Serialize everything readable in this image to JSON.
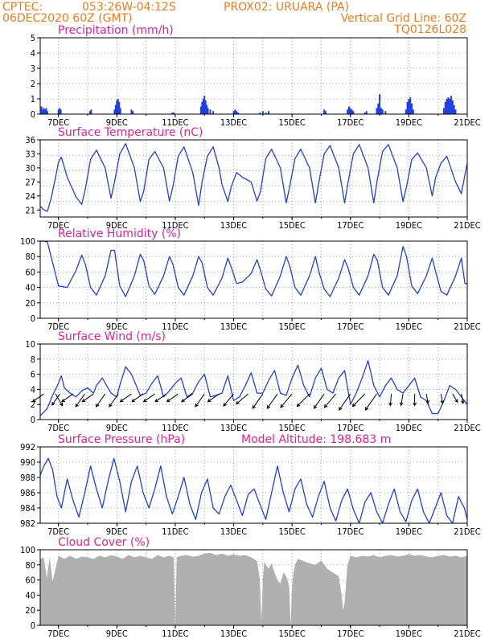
{
  "header": {
    "line1_left": "CPTEC:",
    "coords": "053:26W-04:12S",
    "station": "PROX02: URUARA (PA)",
    "date": "06DEC2020 60Z (GMT)",
    "grid_note": "Vertical Grid Line: 60Z",
    "run_id": "TQ0126L028"
  },
  "colors": {
    "header": "#f07a1e",
    "title": "#e0209a",
    "series": "#1f3fe0",
    "cloud": "#b0b0b0"
  },
  "chart_data": [
    {
      "type": "bar",
      "name": "precip",
      "title": "Precipitation (mm/h)",
      "x_tick_labels": [
        "7DEC",
        "9DEC",
        "11DEC",
        "13DEC",
        "15DEC",
        "17DEC",
        "19DEC",
        "21DEC"
      ],
      "y_ticks": [
        "0",
        "1",
        "2",
        "3",
        "4",
        "5"
      ],
      "ylim": [
        0,
        5
      ],
      "xlim": [
        6.375,
        21.0
      ],
      "x": [
        6.42,
        6.46,
        6.5,
        6.54,
        6.58,
        6.62,
        7.0,
        7.04,
        7.08,
        8.08,
        8.12,
        8.92,
        8.96,
        9.0,
        9.04,
        9.08,
        9.12,
        9.5,
        9.55,
        10.9,
        10.95,
        11.88,
        11.92,
        11.96,
        12.0,
        12.04,
        12.08,
        12.12,
        12.2,
        12.3,
        13.0,
        13.05,
        13.1,
        13.15,
        13.9,
        14.0,
        14.1,
        14.2,
        16.1,
        16.15,
        16.9,
        16.95,
        17.0,
        17.05,
        17.1,
        17.5,
        17.55,
        17.9,
        17.95,
        18.0,
        18.05,
        18.1,
        18.2,
        18.9,
        18.95,
        19.0,
        19.05,
        19.1,
        19.15,
        20.2,
        20.25,
        20.3,
        20.35,
        20.4,
        20.45,
        20.5,
        20.55,
        20.6
      ],
      "values": [
        0.5,
        0.3,
        0.4,
        0.3,
        0.4,
        0.2,
        0.3,
        0.4,
        0.3,
        0.2,
        0.3,
        0.3,
        0.6,
        0.9,
        1.0,
        0.8,
        0.4,
        0.3,
        0.2,
        0.1,
        0.1,
        0.5,
        0.8,
        1.0,
        1.2,
        0.9,
        0.6,
        0.4,
        0.3,
        0.2,
        0.2,
        0.3,
        0.2,
        0.1,
        0.1,
        0.2,
        0.1,
        0.2,
        0.3,
        0.2,
        0.3,
        0.5,
        0.4,
        0.3,
        0.2,
        0.1,
        0.2,
        0.4,
        0.7,
        1.3,
        0.4,
        0.3,
        0.2,
        0.3,
        0.8,
        1.0,
        1.1,
        0.7,
        0.3,
        0.4,
        0.8,
        1.0,
        1.1,
        1.0,
        1.2,
        0.9,
        0.6,
        0.3
      ]
    },
    {
      "type": "line",
      "name": "temp",
      "title": "Surface Temperature (nC)",
      "x_tick_labels": [
        "7DEC",
        "9DEC",
        "11DEC",
        "13DEC",
        "15DEC",
        "17DEC",
        "19DEC",
        "21DEC"
      ],
      "y_ticks": [
        "21",
        "24",
        "27",
        "30",
        "33",
        "36"
      ],
      "ylim": [
        19.5,
        36
      ],
      "xlim": [
        6.375,
        21.0
      ],
      "x": [
        6.375,
        6.45,
        6.55,
        6.62,
        6.75,
        6.9,
        7.0,
        7.1,
        7.3,
        7.6,
        7.8,
        7.92,
        8.1,
        8.3,
        8.6,
        8.8,
        8.92,
        9.1,
        9.3,
        9.6,
        9.8,
        9.92,
        10.1,
        10.3,
        10.6,
        10.8,
        10.92,
        11.1,
        11.3,
        11.6,
        11.8,
        11.92,
        12.1,
        12.3,
        12.5,
        12.6,
        12.8,
        12.92,
        13.1,
        13.3,
        13.6,
        13.8,
        13.92,
        14.1,
        14.3,
        14.6,
        14.8,
        14.92,
        15.1,
        15.3,
        15.6,
        15.8,
        15.92,
        16.1,
        16.3,
        16.6,
        16.8,
        16.92,
        17.1,
        17.3,
        17.6,
        17.8,
        17.92,
        18.1,
        18.3,
        18.6,
        18.8,
        18.92,
        19.1,
        19.3,
        19.6,
        19.8,
        19.92,
        20.1,
        20.3,
        20.6,
        20.8,
        20.92,
        21.0
      ],
      "values": [
        21.8,
        21.3,
        20.9,
        20.7,
        23.5,
        28.0,
        31.2,
        32.3,
        28.0,
        23.8,
        22.2,
        25.5,
        31.8,
        33.8,
        30.0,
        23.5,
        27.0,
        33.0,
        35.2,
        30.0,
        22.8,
        25.0,
        31.8,
        33.5,
        30.0,
        22.9,
        26.0,
        32.5,
        34.5,
        29.0,
        22.0,
        27.0,
        32.5,
        34.5,
        30.0,
        26.5,
        22.8,
        26.0,
        29.0,
        28.0,
        27.0,
        22.9,
        25.0,
        32.0,
        34.0,
        30.0,
        22.5,
        26.0,
        32.0,
        34.0,
        30.0,
        22.5,
        27.0,
        33.0,
        34.8,
        30.0,
        22.5,
        27.0,
        33.0,
        35.0,
        30.0,
        22.5,
        27.5,
        33.5,
        35.0,
        30.0,
        22.8,
        26.0,
        31.8,
        33.2,
        30.0,
        24.0,
        28.0,
        31.0,
        32.5,
        27.0,
        24.5,
        28.5,
        31.0
      ]
    },
    {
      "type": "line",
      "name": "rh",
      "title": "Relative Humidity (%)",
      "x_tick_labels": [
        "7DEC",
        "9DEC",
        "11DEC",
        "13DEC",
        "15DEC",
        "17DEC",
        "19DEC",
        "21DEC"
      ],
      "y_ticks": [
        "0",
        "20",
        "40",
        "60",
        "80",
        "100"
      ],
      "ylim": [
        0,
        100
      ],
      "xlim": [
        6.375,
        21.0
      ],
      "x": [
        6.375,
        6.5,
        6.62,
        6.85,
        7.0,
        7.3,
        7.6,
        7.8,
        7.92,
        8.1,
        8.3,
        8.6,
        8.8,
        8.92,
        9.1,
        9.3,
        9.6,
        9.8,
        9.92,
        10.1,
        10.3,
        10.6,
        10.8,
        10.92,
        11.1,
        11.3,
        11.6,
        11.8,
        11.92,
        12.1,
        12.3,
        12.6,
        12.8,
        12.92,
        13.1,
        13.3,
        13.6,
        13.8,
        13.92,
        14.1,
        14.3,
        14.6,
        14.8,
        14.92,
        15.1,
        15.3,
        15.6,
        15.8,
        15.92,
        16.1,
        16.3,
        16.6,
        16.8,
        16.92,
        17.1,
        17.3,
        17.6,
        17.8,
        17.92,
        18.1,
        18.3,
        18.6,
        18.8,
        18.92,
        19.1,
        19.3,
        19.6,
        19.8,
        19.92,
        20.1,
        20.3,
        20.6,
        20.8,
        20.92,
        21.0
      ],
      "values": [
        100,
        100,
        99,
        65,
        42,
        40,
        62,
        82,
        70,
        40,
        30,
        55,
        88,
        88,
        42,
        28,
        55,
        83,
        75,
        42,
        31,
        55,
        80,
        70,
        40,
        30,
        55,
        80,
        72,
        40,
        30,
        52,
        78,
        66,
        45,
        47,
        58,
        76,
        62,
        38,
        29,
        55,
        80,
        68,
        40,
        30,
        55,
        80,
        60,
        38,
        28,
        52,
        76,
        65,
        40,
        30,
        55,
        83,
        75,
        40,
        30,
        55,
        93,
        80,
        42,
        32,
        55,
        78,
        60,
        35,
        30,
        55,
        78,
        45,
        45
      ]
    },
    {
      "type": "line",
      "name": "wind",
      "title": "Surface Wind (m/s)",
      "x_tick_labels": [
        "7DEC",
        "9DEC",
        "11DEC",
        "13DEC",
        "15DEC",
        "17DEC",
        "19DEC",
        "21DEC"
      ],
      "y_ticks": [
        "0",
        "2",
        "4",
        "6",
        "8",
        "10"
      ],
      "ylim": [
        0,
        10
      ],
      "xlim": [
        6.375,
        21.0
      ],
      "x": [
        6.375,
        6.5,
        6.62,
        6.8,
        7.0,
        7.1,
        7.2,
        7.4,
        7.6,
        7.8,
        8.0,
        8.2,
        8.3,
        8.5,
        8.8,
        9.0,
        9.1,
        9.3,
        9.5,
        9.8,
        10.0,
        10.2,
        10.4,
        10.6,
        10.8,
        11.0,
        11.2,
        11.4,
        11.6,
        11.8,
        12.0,
        12.2,
        12.4,
        12.6,
        12.8,
        13.0,
        13.2,
        13.4,
        13.6,
        13.8,
        14.0,
        14.2,
        14.4,
        14.6,
        14.8,
        15.0,
        15.2,
        15.4,
        15.6,
        15.8,
        16.0,
        16.2,
        16.4,
        16.6,
        16.8,
        17.0,
        17.2,
        17.4,
        17.6,
        17.8,
        18.0,
        18.2,
        18.4,
        18.6,
        18.8,
        19.0,
        19.2,
        19.4,
        19.6,
        19.8,
        20.0,
        20.2,
        20.4,
        20.6,
        20.8,
        21.0
      ],
      "values": [
        0.5,
        1.0,
        1.5,
        3.2,
        4.8,
        5.8,
        4.2,
        3.5,
        3.0,
        3.8,
        4.2,
        3.5,
        4.5,
        5.5,
        3.5,
        3.0,
        4.5,
        7.0,
        6.0,
        3.2,
        3.5,
        4.8,
        5.8,
        3.0,
        3.8,
        4.8,
        5.5,
        3.0,
        3.5,
        5.0,
        6.0,
        3.0,
        3.2,
        3.5,
        5.8,
        2.5,
        3.0,
        4.5,
        6.2,
        3.5,
        3.5,
        5.2,
        6.5,
        3.5,
        3.2,
        5.5,
        7.2,
        4.5,
        3.0,
        5.5,
        6.8,
        4.0,
        3.5,
        5.5,
        6.5,
        2.0,
        3.5,
        5.5,
        7.8,
        4.5,
        3.0,
        4.5,
        5.5,
        4.0,
        3.5,
        4.5,
        5.5,
        3.0,
        2.5,
        0.8,
        0.8,
        2.5,
        4.5,
        4.0,
        3.0,
        2.0
      ],
      "arrows": [
        {
          "x": 6.5,
          "dir": 215,
          "speed": 2
        },
        {
          "x": 6.9,
          "dir": 300,
          "speed": 2
        },
        {
          "x": 7.05,
          "dir": 235,
          "speed": 2
        },
        {
          "x": 7.5,
          "dir": 215,
          "speed": 2
        },
        {
          "x": 7.9,
          "dir": 235,
          "speed": 2.5
        },
        {
          "x": 8.2,
          "dir": 215,
          "speed": 2
        },
        {
          "x": 8.6,
          "dir": 235,
          "speed": 2.5
        },
        {
          "x": 9.05,
          "dir": 235,
          "speed": 2.5
        },
        {
          "x": 9.5,
          "dir": 215,
          "speed": 2
        },
        {
          "x": 9.9,
          "dir": 215,
          "speed": 2
        },
        {
          "x": 10.3,
          "dir": 215,
          "speed": 2
        },
        {
          "x": 10.7,
          "dir": 215,
          "speed": 2
        },
        {
          "x": 11.1,
          "dir": 215,
          "speed": 2
        },
        {
          "x": 11.6,
          "dir": 215,
          "speed": 2
        },
        {
          "x": 12.0,
          "dir": 235,
          "speed": 2.5
        },
        {
          "x": 12.5,
          "dir": 215,
          "speed": 2
        },
        {
          "x": 13.0,
          "dir": 230,
          "speed": 2.5
        },
        {
          "x": 13.5,
          "dir": 220,
          "speed": 2.5
        },
        {
          "x": 14.0,
          "dir": 235,
          "speed": 3
        },
        {
          "x": 14.5,
          "dir": 235,
          "speed": 3
        },
        {
          "x": 15.0,
          "dir": 230,
          "speed": 3
        },
        {
          "x": 15.6,
          "dir": 225,
          "speed": 3
        },
        {
          "x": 16.1,
          "dir": 235,
          "speed": 3
        },
        {
          "x": 16.5,
          "dir": 230,
          "speed": 3
        },
        {
          "x": 17.0,
          "dir": 235,
          "speed": 3.5
        },
        {
          "x": 17.5,
          "dir": 225,
          "speed": 3
        },
        {
          "x": 17.9,
          "dir": 235,
          "speed": 3.5
        },
        {
          "x": 18.4,
          "dir": 265,
          "speed": 1.5
        },
        {
          "x": 18.8,
          "dir": 260,
          "speed": 1.5
        },
        {
          "x": 19.2,
          "dir": 270,
          "speed": 1.5
        },
        {
          "x": 19.6,
          "dir": 280,
          "speed": 1
        },
        {
          "x": 20.1,
          "dir": 280,
          "speed": 1
        },
        {
          "x": 20.5,
          "dir": 300,
          "speed": 1
        },
        {
          "x": 20.8,
          "dir": 280,
          "speed": 1
        }
      ]
    },
    {
      "type": "line",
      "name": "press",
      "title": "Surface Pressure (hPa)",
      "annotation": "Model Altitude: 198.683 m",
      "x_tick_labels": [
        "7DEC",
        "9DEC",
        "11DEC",
        "13DEC",
        "15DEC",
        "17DEC",
        "19DEC",
        "21DEC"
      ],
      "y_ticks": [
        "982",
        "984",
        "986",
        "988",
        "990",
        "992"
      ],
      "ylim": [
        982,
        992
      ],
      "xlim": [
        6.375,
        21.0
      ],
      "x": [
        6.375,
        6.5,
        6.65,
        6.8,
        6.95,
        7.1,
        7.3,
        7.5,
        7.7,
        7.9,
        8.1,
        8.3,
        8.5,
        8.7,
        8.9,
        9.1,
        9.3,
        9.5,
        9.7,
        9.9,
        10.1,
        10.3,
        10.5,
        10.7,
        10.9,
        11.1,
        11.3,
        11.5,
        11.7,
        11.9,
        12.1,
        12.3,
        12.5,
        12.7,
        12.9,
        13.1,
        13.3,
        13.5,
        13.7,
        13.9,
        14.1,
        14.3,
        14.5,
        14.7,
        14.9,
        15.1,
        15.3,
        15.5,
        15.7,
        15.9,
        16.1,
        16.3,
        16.5,
        16.7,
        16.9,
        17.1,
        17.3,
        17.5,
        17.7,
        17.9,
        18.1,
        18.3,
        18.5,
        18.7,
        18.9,
        19.1,
        19.3,
        19.5,
        19.7,
        19.9,
        20.1,
        20.3,
        20.5,
        20.7,
        20.9,
        21.0
      ],
      "values": [
        988.3,
        989.5,
        990.5,
        989.0,
        985.5,
        984.0,
        987.8,
        985.0,
        982.8,
        986.0,
        989.5,
        986.5,
        984.0,
        987.5,
        990.5,
        987.5,
        983.5,
        987.5,
        989.5,
        986.0,
        984.0,
        986.5,
        989.5,
        985.5,
        983.2,
        985.5,
        988.0,
        984.5,
        982.5,
        986.0,
        987.8,
        984.0,
        983.2,
        985.5,
        987.0,
        985.0,
        983.0,
        985.8,
        986.5,
        984.5,
        982.5,
        986.0,
        989.5,
        986.0,
        983.5,
        986.5,
        987.8,
        984.5,
        982.8,
        985.5,
        987.5,
        984.0,
        982.3,
        985.0,
        986.5,
        983.8,
        982.0,
        984.8,
        986.0,
        983.5,
        982.0,
        984.5,
        986.5,
        983.5,
        982.2,
        985.0,
        986.5,
        983.5,
        982.0,
        984.0,
        986.0,
        983.0,
        982.0,
        985.5,
        984.0,
        982.5
      ]
    },
    {
      "type": "area",
      "name": "cloud",
      "title": "Cloud Cover (%)",
      "x_tick_labels": [
        "7DEC",
        "9DEC",
        "11DEC",
        "13DEC",
        "15DEC",
        "17DEC",
        "19DEC",
        "21DEC"
      ],
      "y_ticks": [
        "0",
        "20",
        "40",
        "60",
        "80",
        "100"
      ],
      "ylim": [
        0,
        100
      ],
      "xlim": [
        6.375,
        21.0
      ],
      "x": [
        6.375,
        6.5,
        6.6,
        6.7,
        6.8,
        7.0,
        7.2,
        7.4,
        7.6,
        7.8,
        8.0,
        8.2,
        8.4,
        8.6,
        8.8,
        9.0,
        9.2,
        9.4,
        9.6,
        9.8,
        10.0,
        10.2,
        10.4,
        10.6,
        10.8,
        10.95,
        11.0,
        11.05,
        11.2,
        11.4,
        11.6,
        11.8,
        12.0,
        12.2,
        12.4,
        12.6,
        12.8,
        13.0,
        13.2,
        13.4,
        13.6,
        13.8,
        13.9,
        13.95,
        14.0,
        14.05,
        14.1,
        14.2,
        14.3,
        14.4,
        14.5,
        14.6,
        14.7,
        14.8,
        14.9,
        14.95,
        15.0,
        15.05,
        15.1,
        15.2,
        15.4,
        15.6,
        15.8,
        16.0,
        16.2,
        16.4,
        16.6,
        16.7,
        16.75,
        16.8,
        16.85,
        16.9,
        17.0,
        17.2,
        17.4,
        17.6,
        17.8,
        18.0,
        18.2,
        18.4,
        18.6,
        18.8,
        19.0,
        19.2,
        19.4,
        19.6,
        19.8,
        20.0,
        20.2,
        20.4,
        20.6,
        20.8,
        21.0
      ],
      "values": [
        88,
        90,
        62,
        90,
        58,
        92,
        88,
        92,
        88,
        91,
        90,
        88,
        92,
        90,
        93,
        91,
        88,
        93,
        90,
        92,
        90,
        88,
        93,
        90,
        92,
        90,
        0,
        90,
        92,
        93,
        91,
        92,
        95,
        96,
        93,
        95,
        92,
        94,
        92,
        93,
        90,
        85,
        60,
        5,
        60,
        85,
        80,
        75,
        82,
        70,
        60,
        55,
        70,
        65,
        52,
        0,
        52,
        70,
        80,
        88,
        85,
        82,
        80,
        86,
        75,
        70,
        65,
        40,
        20,
        30,
        55,
        80,
        92,
        90,
        92,
        91,
        93,
        90,
        92,
        93,
        91,
        92,
        94,
        92,
        93,
        91,
        90,
        92,
        93,
        91,
        92,
        90,
        92
      ]
    }
  ]
}
